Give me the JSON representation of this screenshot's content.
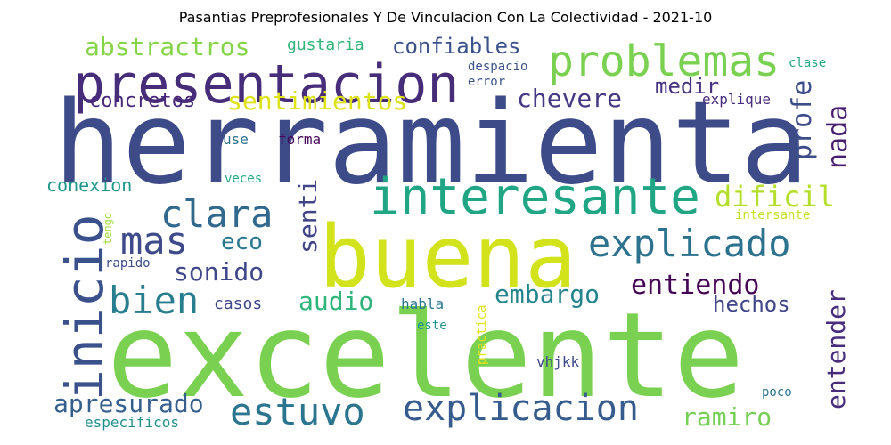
{
  "title": "Pasantias Preprofesionales Y De Vinculacion Con La Colectividad - 2021-10",
  "words": [
    {
      "text": "herramienta",
      "color": "#3e4b89"
    },
    {
      "text": "excelente",
      "color": "#7ad151"
    },
    {
      "text": "buena",
      "color": "#d2e21b"
    },
    {
      "text": "presentacion",
      "color": "#472c7a"
    },
    {
      "text": "interesante",
      "color": "#21a685"
    },
    {
      "text": "problemas",
      "color": "#7ad151"
    },
    {
      "text": "explicado",
      "color": "#2c728e"
    },
    {
      "text": "inicio",
      "color": "#3b518b"
    },
    {
      "text": "explicacion",
      "color": "#365c8d"
    },
    {
      "text": "estuvo",
      "color": "#2b758e"
    },
    {
      "text": "clara",
      "color": "#31688e"
    },
    {
      "text": "mas",
      "color": "#3e4a89"
    },
    {
      "text": "bien",
      "color": "#287d8e"
    },
    {
      "text": "abstractros",
      "color": "#86d549"
    },
    {
      "text": "confiables",
      "color": "#3b528b"
    },
    {
      "text": "sentimientos",
      "color": "#dde318"
    },
    {
      "text": "chevere",
      "color": "#443983"
    },
    {
      "text": "concretos",
      "color": "#482878"
    },
    {
      "text": "medir",
      "color": "#46327e"
    },
    {
      "text": "profe",
      "color": "#3d4d8a"
    },
    {
      "text": "nada",
      "color": "#481f70"
    },
    {
      "text": "dificil",
      "color": "#b5de2b"
    },
    {
      "text": "eco",
      "color": "#2a788e"
    },
    {
      "text": "senti",
      "color": "#414487"
    },
    {
      "text": "sonido",
      "color": "#3f4788"
    },
    {
      "text": "audio",
      "color": "#2fb47c"
    },
    {
      "text": "embargo",
      "color": "#25858e"
    },
    {
      "text": "entiendo",
      "color": "#440154"
    },
    {
      "text": "entender",
      "color": "#472d7b"
    },
    {
      "text": "hechos",
      "color": "#404688"
    },
    {
      "text": "apresurado",
      "color": "#355f8d"
    },
    {
      "text": "ramiro",
      "color": "#75d054"
    },
    {
      "text": "conexion",
      "color": "#1f968b"
    },
    {
      "text": "gustaria",
      "color": "#31b57b"
    },
    {
      "text": "despacio",
      "color": "#3b528b"
    },
    {
      "text": "error",
      "color": "#3a548c"
    },
    {
      "text": "clase",
      "color": "#21a685"
    },
    {
      "text": "explique",
      "color": "#472d7b"
    },
    {
      "text": "use",
      "color": "#2c728e"
    },
    {
      "text": "forma",
      "color": "#450559"
    },
    {
      "text": "veces",
      "color": "#23a983"
    },
    {
      "text": "intersante",
      "color": "#c8e020"
    },
    {
      "text": "tengo",
      "color": "#a2da37"
    },
    {
      "text": "rapido",
      "color": "#3d4e8a"
    },
    {
      "text": "casos",
      "color": "#3f4889"
    },
    {
      "text": "habla",
      "color": "#2a788e"
    },
    {
      "text": "este",
      "color": "#1f958b"
    },
    {
      "text": "practica",
      "color": "#e5e419"
    },
    {
      "text": "vhjkk",
      "color": "#3e4a89"
    },
    {
      "text": "poco",
      "color": "#2c728e"
    },
    {
      "text": "especificos",
      "color": "#21918c"
    }
  ]
}
